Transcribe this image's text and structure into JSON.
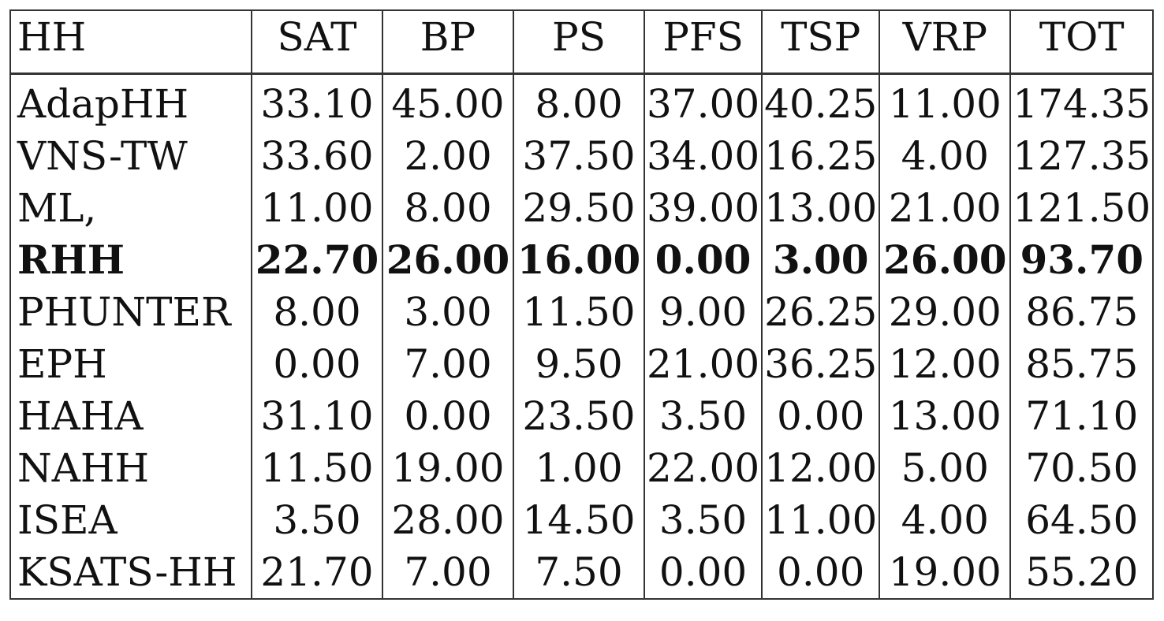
{
  "table": {
    "headers": [
      "HH",
      "SAT",
      "BP",
      "PS",
      "PFS",
      "TSP",
      "VRP",
      "TOT"
    ],
    "rows": [
      {
        "cells": [
          "AdapHH",
          "33.10",
          "45.00",
          "8.00",
          "37.00",
          "40.25",
          "11.00",
          "174.35"
        ],
        "bold": false
      },
      {
        "cells": [
          "VNS-TW",
          "33.60",
          "2.00",
          "37.50",
          "34.00",
          "16.25",
          "4.00",
          "127.35"
        ],
        "bold": false
      },
      {
        "cells": [
          "ML,",
          "11.00",
          "8.00",
          "29.50",
          "39.00",
          "13.00",
          "21.00",
          "121.50"
        ],
        "bold": false
      },
      {
        "cells": [
          "RHH",
          "22.70",
          "26.00",
          "16.00",
          "0.00",
          "3.00",
          "26.00",
          "93.70"
        ],
        "bold": true
      },
      {
        "cells": [
          "PHUNTER",
          "8.00",
          "3.00",
          "11.50",
          "9.00",
          "26.25",
          "29.00",
          "86.75"
        ],
        "bold": false
      },
      {
        "cells": [
          "EPH",
          "0.00",
          "7.00",
          "9.50",
          "21.00",
          "36.25",
          "12.00",
          "85.75"
        ],
        "bold": false
      },
      {
        "cells": [
          "HAHA",
          "31.10",
          "0.00",
          "23.50",
          "3.50",
          "0.00",
          "13.00",
          "71.10"
        ],
        "bold": false
      },
      {
        "cells": [
          "NAHH",
          "11.50",
          "19.00",
          "1.00",
          "22.00",
          "12.00",
          "5.00",
          "70.50"
        ],
        "bold": false
      },
      {
        "cells": [
          "ISEA",
          "3.50",
          "28.00",
          "14.50",
          "3.50",
          "11.00",
          "4.00",
          "64.50"
        ],
        "bold": false
      },
      {
        "cells": [
          "KSATS-HH",
          "21.70",
          "7.00",
          "7.50",
          "0.00",
          "0.00",
          "19.00",
          "55.20"
        ],
        "bold": false
      }
    ]
  }
}
